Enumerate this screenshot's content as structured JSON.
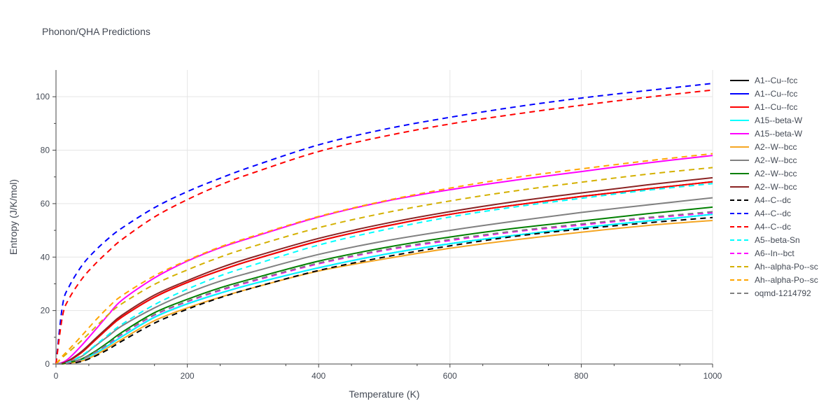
{
  "chart_data": {
    "type": "line",
    "title": "Phonon/QHA Predictions",
    "xlabel": "Temperature (K)",
    "ylabel": "Entropy (J/K/mol)",
    "xlim": [
      0,
      1000
    ],
    "ylim": [
      0,
      110
    ],
    "xticks": [
      0,
      200,
      400,
      600,
      800,
      1000
    ],
    "yticks": [
      0,
      20,
      40,
      60,
      80,
      100
    ],
    "grid": true,
    "legend_position": "right",
    "x": [
      0,
      10,
      20,
      40,
      60,
      80,
      100,
      150,
      200,
      250,
      300,
      400,
      500,
      600,
      700,
      800,
      900,
      1000
    ],
    "series": [
      {
        "name": "A1--Cu--fcc",
        "color": "#000000",
        "dash": "solid",
        "values": [
          0,
          0.3,
          1.2,
          4.5,
          9,
          13.5,
          17.5,
          25,
          30.5,
          35,
          39,
          46,
          51.5,
          56,
          59.5,
          62.7,
          65.5,
          68.2
        ]
      },
      {
        "name": "A1--Cu--fcc",
        "color": "#0000ff",
        "dash": "solid",
        "values": [
          0,
          0.1,
          0.4,
          1.6,
          4,
          7,
          10.2,
          17.5,
          22.5,
          26.5,
          30,
          36,
          41,
          45,
          48.2,
          51,
          53.5,
          56
        ]
      },
      {
        "name": "A1--Cu--fcc",
        "color": "#ff0000",
        "dash": "solid",
        "values": [
          0,
          0.3,
          1.2,
          4.5,
          9,
          13.5,
          17.5,
          25,
          30.5,
          35,
          39,
          46,
          51.5,
          56,
          59.5,
          62.7,
          65.5,
          68.2
        ]
      },
      {
        "name": "A15--beta-W",
        "color": "#00ffff",
        "dash": "solid",
        "values": [
          0,
          0.1,
          0.4,
          1.6,
          4,
          7,
          10.2,
          17.5,
          22.5,
          26.5,
          30,
          36,
          41,
          45,
          48.2,
          51,
          53.5,
          56
        ]
      },
      {
        "name": "A15--beta-W",
        "color": "#ff00ff",
        "dash": "solid",
        "values": [
          0,
          0.6,
          2.2,
          7.2,
          12.8,
          18.5,
          23.8,
          32.2,
          38.5,
          43.5,
          47.5,
          55,
          60.8,
          65.2,
          68.8,
          72,
          75.2,
          78
        ]
      },
      {
        "name": "A2--W--bcc",
        "color": "#f5a623",
        "dash": "solid",
        "values": [
          0,
          0.05,
          0.3,
          1.2,
          3.3,
          6.2,
          9.2,
          16.2,
          21,
          25,
          28.5,
          34.8,
          39.3,
          43.3,
          46.5,
          49.3,
          51.8,
          53.7
        ]
      },
      {
        "name": "A2--W--bcc",
        "color": "#808080",
        "dash": "solid",
        "values": [
          0,
          0.2,
          0.8,
          3,
          6.8,
          10.5,
          14.2,
          21,
          26.5,
          31,
          34.5,
          41,
          46,
          50,
          53.5,
          56.7,
          59.5,
          62.2
        ]
      },
      {
        "name": "A2--W--bcc",
        "color": "#008000",
        "dash": "solid",
        "values": [
          0,
          0.1,
          0.5,
          2,
          4.8,
          8.2,
          11.8,
          19.2,
          24.2,
          28.5,
          32,
          38.5,
          43.5,
          47.5,
          50.8,
          53.5,
          56.2,
          58.7
        ]
      },
      {
        "name": "A2--W--bcc",
        "color": "#8b2323",
        "dash": "solid",
        "values": [
          0,
          0.35,
          1.4,
          4.9,
          9.5,
          14,
          18.2,
          25.8,
          31.2,
          36,
          40,
          47,
          52.5,
          57,
          60.8,
          64,
          67,
          69.7
        ]
      },
      {
        "name": "A4--C--dc",
        "color": "#000000",
        "dash": "dash",
        "values": [
          0,
          0.05,
          0.2,
          1,
          3,
          5.5,
          8.5,
          15.3,
          20.5,
          24.8,
          28.5,
          35,
          40,
          44.2,
          47.8,
          50.5,
          52.8,
          54.8
        ]
      },
      {
        "name": "A4--C--dc",
        "color": "#0000ff",
        "dash": "dash",
        "values": [
          0,
          22,
          29,
          37,
          42.5,
          47,
          50.8,
          58.5,
          64.5,
          69.5,
          74,
          82,
          87.8,
          92.3,
          96.2,
          99.5,
          102.3,
          105
        ]
      },
      {
        "name": "A4--C--dc",
        "color": "#ff0000",
        "dash": "dash",
        "values": [
          0,
          18,
          24.5,
          32,
          37.5,
          42.2,
          46.5,
          55,
          61.5,
          67,
          71.5,
          79.5,
          85.2,
          89.8,
          93.5,
          96.8,
          99.8,
          102.5
        ]
      },
      {
        "name": "A5--beta-Sn",
        "color": "#00ffff",
        "dash": "dash",
        "values": [
          0,
          0.2,
          0.8,
          3.3,
          7,
          11,
          14.8,
          22.2,
          28,
          33,
          37,
          44.5,
          50.2,
          55,
          58.8,
          62,
          65,
          67.5
        ]
      },
      {
        "name": "A6--In--bct",
        "color": "#ff00ff",
        "dash": "dash",
        "values": [
          0,
          0.1,
          0.4,
          1.8,
          4.4,
          7.5,
          11,
          18.3,
          23.3,
          27.5,
          31,
          37.5,
          42.5,
          46.2,
          49.5,
          52,
          54.5,
          56.6
        ]
      },
      {
        "name": "Ah--alpha-Po--sc",
        "color": "#d4b000",
        "dash": "dash",
        "values": [
          0,
          2.5,
          4.6,
          9,
          13.8,
          18.6,
          22.5,
          29.8,
          35.2,
          40,
          44,
          51,
          56.5,
          61,
          64.8,
          68,
          71,
          73.5
        ]
      },
      {
        "name": "Ah--alpha-Po--sc",
        "color": "#ffa500",
        "dash": "dash",
        "values": [
          0,
          3,
          5.5,
          10.8,
          16.3,
          21.3,
          25.5,
          33,
          38.8,
          43.8,
          47.8,
          55.2,
          61,
          65.8,
          69.8,
          73,
          76,
          78.7
        ]
      },
      {
        "name": "oqmd-1214792",
        "color": "#808080",
        "dash": "dash",
        "values": [
          0,
          0.1,
          0.45,
          1.9,
          4.5,
          7.7,
          11.2,
          18.5,
          23.5,
          27.8,
          31.3,
          37.8,
          42.8,
          46.6,
          49.8,
          52.4,
          54.8,
          57
        ]
      }
    ]
  }
}
